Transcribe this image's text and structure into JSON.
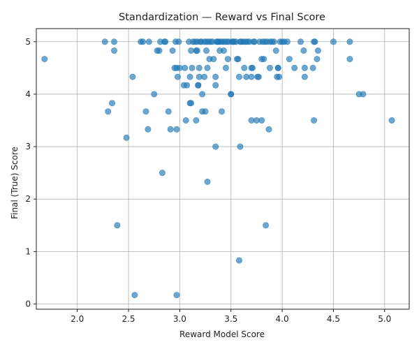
{
  "chart_data": {
    "type": "scatter",
    "title": "Standardization — Reward vs Final Score",
    "xlabel": "Reward Model Score",
    "ylabel": "Final (True) Score",
    "xlim": [
      1.6,
      5.24
    ],
    "ylim": [
      -0.1,
      5.25
    ],
    "xticks": [
      "2.0",
      "2.5",
      "3.0",
      "3.5",
      "4.0",
      "4.5",
      "5.0"
    ],
    "yticks": [
      "0",
      "1",
      "2",
      "3",
      "4",
      "5"
    ],
    "grid": true,
    "point_color": "#1f77b4",
    "points": [
      [
        1.68,
        4.67
      ],
      [
        2.27,
        5.0
      ],
      [
        2.36,
        5.0
      ],
      [
        2.36,
        4.83
      ],
      [
        2.34,
        3.83
      ],
      [
        2.3,
        3.67
      ],
      [
        2.39,
        1.5
      ],
      [
        2.48,
        3.17
      ],
      [
        2.54,
        4.33
      ],
      [
        2.56,
        0.17
      ],
      [
        2.62,
        5.0
      ],
      [
        2.64,
        5.0
      ],
      [
        2.67,
        3.67
      ],
      [
        2.69,
        3.33
      ],
      [
        2.7,
        5.0
      ],
      [
        2.75,
        4.0
      ],
      [
        2.78,
        4.83
      ],
      [
        2.8,
        4.83
      ],
      [
        2.81,
        5.0
      ],
      [
        2.83,
        2.5
      ],
      [
        2.85,
        5.0
      ],
      [
        2.86,
        5.0
      ],
      [
        2.89,
        3.67
      ],
      [
        2.91,
        3.33
      ],
      [
        2.93,
        4.83
      ],
      [
        2.95,
        4.5
      ],
      [
        2.96,
        5.0
      ],
      [
        2.97,
        4.5
      ],
      [
        2.97,
        3.33
      ],
      [
        2.98,
        4.33
      ],
      [
        2.99,
        5.0
      ],
      [
        3.0,
        4.5
      ],
      [
        2.97,
        0.17
      ],
      [
        3.04,
        4.17
      ],
      [
        3.05,
        4.5
      ],
      [
        3.06,
        3.5
      ],
      [
        3.07,
        4.17
      ],
      [
        3.09,
        5.0
      ],
      [
        3.1,
        3.83
      ],
      [
        3.1,
        4.33
      ],
      [
        3.11,
        3.83
      ],
      [
        3.11,
        4.83
      ],
      [
        3.12,
        4.5
      ],
      [
        3.13,
        5.0
      ],
      [
        3.15,
        5.0
      ],
      [
        3.16,
        3.5
      ],
      [
        3.16,
        4.83
      ],
      [
        3.17,
        4.83
      ],
      [
        3.17,
        5.0
      ],
      [
        3.18,
        4.17
      ],
      [
        3.18,
        4.17
      ],
      [
        3.19,
        4.33
      ],
      [
        3.19,
        4.5
      ],
      [
        3.2,
        5.0
      ],
      [
        3.21,
        5.0
      ],
      [
        3.22,
        4.0
      ],
      [
        3.22,
        3.67
      ],
      [
        3.24,
        4.33
      ],
      [
        3.24,
        5.0
      ],
      [
        3.25,
        3.67
      ],
      [
        3.26,
        5.0
      ],
      [
        3.26,
        4.83
      ],
      [
        3.27,
        2.33
      ],
      [
        3.27,
        4.5
      ],
      [
        3.28,
        5.0
      ],
      [
        3.29,
        4.67
      ],
      [
        3.3,
        5.0
      ],
      [
        3.32,
        5.0
      ],
      [
        3.33,
        4.67
      ],
      [
        3.35,
        3.0
      ],
      [
        3.35,
        4.17
      ],
      [
        3.35,
        4.33
      ],
      [
        3.36,
        5.0
      ],
      [
        3.37,
        5.0
      ],
      [
        3.38,
        5.0
      ],
      [
        3.39,
        4.83
      ],
      [
        3.4,
        5.0
      ],
      [
        3.41,
        3.67
      ],
      [
        3.42,
        5.0
      ],
      [
        3.43,
        4.83
      ],
      [
        3.44,
        5.0
      ],
      [
        3.45,
        4.5
      ],
      [
        3.46,
        5.0
      ],
      [
        3.47,
        4.67
      ],
      [
        3.48,
        5.0
      ],
      [
        3.5,
        4.0
      ],
      [
        3.5,
        4.0
      ],
      [
        3.51,
        5.0
      ],
      [
        3.52,
        5.0
      ],
      [
        3.53,
        5.0
      ],
      [
        3.55,
        5.0
      ],
      [
        3.56,
        4.67
      ],
      [
        3.57,
        4.67
      ],
      [
        3.58,
        0.83
      ],
      [
        3.58,
        4.33
      ],
      [
        3.59,
        5.0
      ],
      [
        3.59,
        3.0
      ],
      [
        3.6,
        5.0
      ],
      [
        3.62,
        5.0
      ],
      [
        3.63,
        4.5
      ],
      [
        3.64,
        5.0
      ],
      [
        3.65,
        4.33
      ],
      [
        3.66,
        5.0
      ],
      [
        3.68,
        5.0
      ],
      [
        3.7,
        3.5
      ],
      [
        3.7,
        4.5
      ],
      [
        3.7,
        4.33
      ],
      [
        3.71,
        4.5
      ],
      [
        3.72,
        5.0
      ],
      [
        3.73,
        5.0
      ],
      [
        3.75,
        3.5
      ],
      [
        3.76,
        4.33
      ],
      [
        3.77,
        4.33
      ],
      [
        3.78,
        5.0
      ],
      [
        3.8,
        3.5
      ],
      [
        3.8,
        4.67
      ],
      [
        3.81,
        5.0
      ],
      [
        3.82,
        4.67
      ],
      [
        3.83,
        5.0
      ],
      [
        3.84,
        1.5
      ],
      [
        3.85,
        5.0
      ],
      [
        3.87,
        3.33
      ],
      [
        3.88,
        5.0
      ],
      [
        3.88,
        4.5
      ],
      [
        3.9,
        5.0
      ],
      [
        3.92,
        5.0
      ],
      [
        3.94,
        4.83
      ],
      [
        3.95,
        4.33
      ],
      [
        3.96,
        4.5
      ],
      [
        3.96,
        4.5
      ],
      [
        3.97,
        4.33
      ],
      [
        3.98,
        5.0
      ],
      [
        4.0,
        5.0
      ],
      [
        4.02,
        5.0
      ],
      [
        4.05,
        5.0
      ],
      [
        4.07,
        4.67
      ],
      [
        4.12,
        4.5
      ],
      [
        4.18,
        5.0
      ],
      [
        4.21,
        4.83
      ],
      [
        4.22,
        4.5
      ],
      [
        4.22,
        4.33
      ],
      [
        4.3,
        4.5
      ],
      [
        4.31,
        5.0
      ],
      [
        4.31,
        3.5
      ],
      [
        4.32,
        5.0
      ],
      [
        4.34,
        4.67
      ],
      [
        4.35,
        4.83
      ],
      [
        4.5,
        5.0
      ],
      [
        4.66,
        5.0
      ],
      [
        4.66,
        4.67
      ],
      [
        4.75,
        4.0
      ],
      [
        4.79,
        4.0
      ],
      [
        5.07,
        3.5
      ]
    ]
  }
}
